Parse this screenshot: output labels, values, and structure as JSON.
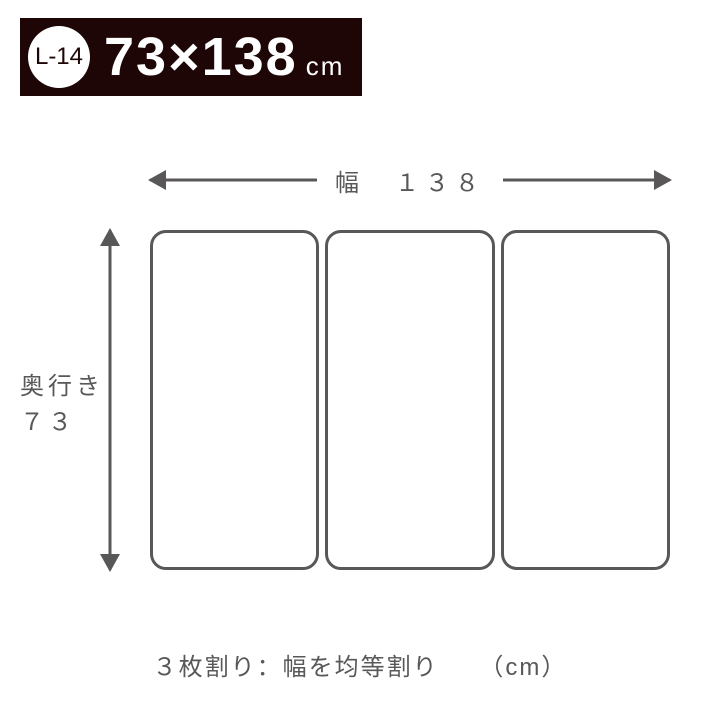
{
  "badge": {
    "bar_bg": "#1f0606",
    "circle_bg": "#ffffff",
    "circle_text_color": "#1f0606",
    "code": "L-14",
    "dims_text": "73×138",
    "dims_color": "#ffffff",
    "unit": "cm"
  },
  "diagram": {
    "arrow_color": "#595757",
    "panel_border_color": "#595757",
    "panel_border_width": 3,
    "panel_border_radius": 16,
    "panel_count": 3,
    "width_label": "幅　１３８",
    "depth_label_line1": "奥行き",
    "depth_label_line2": "７３",
    "text_color": "#595757"
  },
  "caption": {
    "text": "３枚割り：幅を均等割り",
    "unit": "（cm）",
    "color": "#595757"
  }
}
